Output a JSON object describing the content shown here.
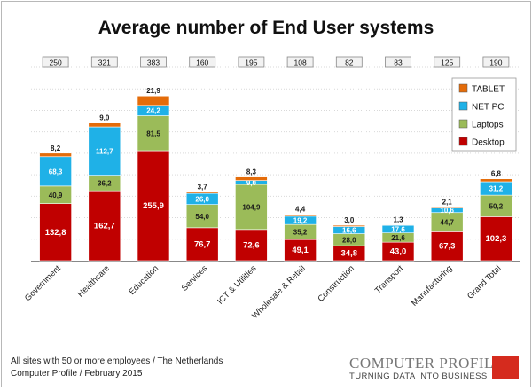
{
  "chart_data": {
    "type": "bar",
    "stacked": true,
    "title": "Average number of End User systems",
    "categories": [
      "Government",
      "Healthcare",
      "Education",
      "Services",
      "ICT & Utilities",
      "Wholesale & Retail",
      "Construction",
      "Transport",
      "Manufacturing",
      "Grand Total"
    ],
    "totals": [
      "250",
      "321",
      "383",
      "160",
      "195",
      "108",
      "82",
      "83",
      "125",
      "190"
    ],
    "series": [
      {
        "name": "Desktop",
        "color": "#c00000",
        "values": [
          132.8,
          162.7,
          255.9,
          76.7,
          72.6,
          49.1,
          34.8,
          43.0,
          67.3,
          102.3
        ],
        "labels": [
          "132,8",
          "162,7",
          "255,9",
          "76,7",
          "72,6",
          "49,1",
          "34,8",
          "43,0",
          "67,3",
          "102,3"
        ]
      },
      {
        "name": "Laptops",
        "color": "#9bbb59",
        "values": [
          40.9,
          36.2,
          81.5,
          54.0,
          104.9,
          35.2,
          28.0,
          21.6,
          44.7,
          50.2
        ],
        "labels": [
          "40,9",
          "36,2",
          "81,5",
          "54,0",
          "104,9",
          "35,2",
          "28,0",
          "21,6",
          "44,7",
          "50,2"
        ]
      },
      {
        "name": "NET PC",
        "color": "#1fb1e7",
        "values": [
          68.3,
          112.7,
          24.2,
          26.0,
          9.0,
          19.2,
          16.6,
          17.6,
          10.6,
          31.2
        ],
        "labels": [
          "68,3",
          "112,7",
          "24,2",
          "26,0",
          "9,0",
          "19,2",
          "16,6",
          "17,6",
          "10,6",
          "31,2"
        ]
      },
      {
        "name": "TABLET",
        "color": "#e46c0a",
        "values": [
          8.2,
          9.0,
          21.9,
          3.7,
          8.3,
          4.4,
          3.0,
          1.3,
          2.1,
          6.8
        ],
        "labels": [
          "8,2",
          "9,0",
          "21,9",
          "3,7",
          "8,3",
          "4,4",
          "3,0",
          "1,3",
          "2,1",
          "6,8"
        ]
      }
    ],
    "ylim": [
      0,
      450
    ],
    "grid": true,
    "legend": {
      "position": "right",
      "order": [
        "TABLET",
        "NET PC",
        "Laptops",
        "Desktop"
      ]
    }
  },
  "footer": {
    "line1": "All sites with 50 or more employees / The Netherlands",
    "line2": "Computer Profile / February 2015"
  },
  "logo": {
    "name": "COMPUTER PROFILE",
    "tagline": "TURNING DATA INTO BUSINESS",
    "color": "#d52b1e"
  }
}
